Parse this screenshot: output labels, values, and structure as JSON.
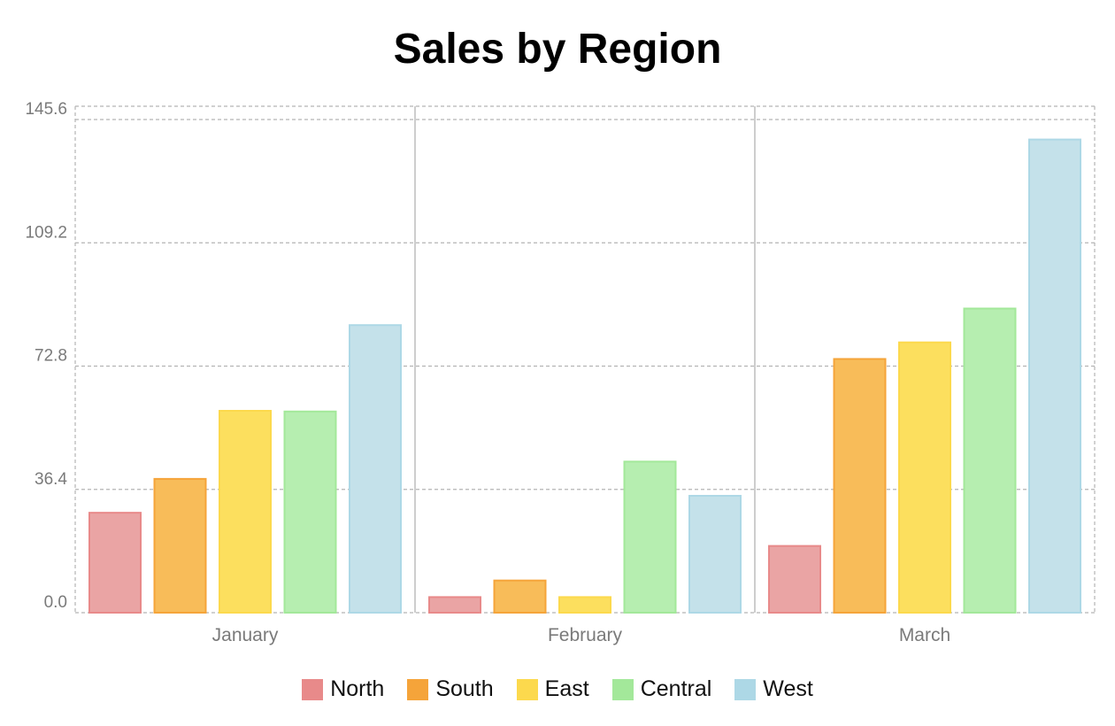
{
  "chart_data": {
    "type": "bar",
    "title": "Sales by Region",
    "xlabel": "",
    "ylabel": "",
    "categories": [
      "January",
      "February",
      "March"
    ],
    "series": [
      {
        "name": "North",
        "values": [
          29.5,
          4.6,
          19.7
        ],
        "color": "#e88a8a",
        "fill": "#eaa4a4"
      },
      {
        "name": "South",
        "values": [
          39.5,
          9.5,
          74.9
        ],
        "color": "#f5a43a",
        "fill": "#f8bc59"
      },
      {
        "name": "East",
        "values": [
          59.6,
          4.6,
          79.8
        ],
        "color": "#fcd94d",
        "fill": "#fcdf5e"
      },
      {
        "name": "Central",
        "values": [
          59.4,
          44.6,
          89.8
        ],
        "color": "#a3e89a",
        "fill": "#b6eeb0"
      },
      {
        "name": "West",
        "values": [
          84.9,
          34.5,
          139.7
        ],
        "color": "#add8e6",
        "fill": "#c4e1ea"
      }
    ],
    "yticks": [
      "0.0",
      "36.4",
      "72.8",
      "109.2",
      "145.6"
    ],
    "ylim": [
      0,
      145.6
    ],
    "grid": true,
    "legend_position": "bottom"
  }
}
